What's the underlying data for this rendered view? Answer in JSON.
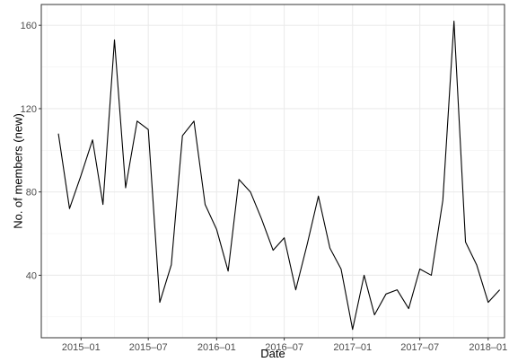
{
  "chart_data": {
    "type": "line",
    "xlabel": "Date",
    "ylabel": "No. of members (new)",
    "xlim": [
      "2014-09-16",
      "2018-02-14"
    ],
    "ylim": [
      10,
      170
    ],
    "grid": true,
    "legend": "none",
    "x_ticks": [
      {
        "date": "2015-01-01",
        "label": "2015–01"
      },
      {
        "date": "2015-07-01",
        "label": "2015–07"
      },
      {
        "date": "2016-01-01",
        "label": "2016–01"
      },
      {
        "date": "2016-07-01",
        "label": "2016–07"
      },
      {
        "date": "2017-01-01",
        "label": "2017–01"
      },
      {
        "date": "2017-07-01",
        "label": "2017–07"
      },
      {
        "date": "2018-01-01",
        "label": "2018–01"
      }
    ],
    "x_minor_ticks": [
      "2014-10-01",
      "2015-04-01",
      "2015-10-01",
      "2016-04-01",
      "2016-10-01",
      "2017-04-01",
      "2017-10-01"
    ],
    "y_ticks": [
      {
        "value": 40,
        "label": "40"
      },
      {
        "value": 80,
        "label": "80"
      },
      {
        "value": 120,
        "label": "120"
      },
      {
        "value": 160,
        "label": "160"
      }
    ],
    "y_minor_ticks": [
      20,
      60,
      100,
      140
    ],
    "series": [
      {
        "color": "#000000",
        "points": [
          {
            "x": "2014-11-01",
            "y": 108
          },
          {
            "x": "2014-12-01",
            "y": 72
          },
          {
            "x": "2015-01-01",
            "y": 88
          },
          {
            "x": "2015-02-01",
            "y": 105
          },
          {
            "x": "2015-03-01",
            "y": 74
          },
          {
            "x": "2015-04-01",
            "y": 153
          },
          {
            "x": "2015-05-01",
            "y": 82
          },
          {
            "x": "2015-06-01",
            "y": 114
          },
          {
            "x": "2015-07-01",
            "y": 110
          },
          {
            "x": "2015-08-01",
            "y": 27
          },
          {
            "x": "2015-09-01",
            "y": 45
          },
          {
            "x": "2015-10-01",
            "y": 107
          },
          {
            "x": "2015-11-01",
            "y": 114
          },
          {
            "x": "2015-12-01",
            "y": 74
          },
          {
            "x": "2016-01-01",
            "y": 62
          },
          {
            "x": "2016-02-01",
            "y": 42
          },
          {
            "x": "2016-03-01",
            "y": 86
          },
          {
            "x": "2016-04-01",
            "y": 80
          },
          {
            "x": "2016-05-01",
            "y": 67
          },
          {
            "x": "2016-06-01",
            "y": 52
          },
          {
            "x": "2016-07-01",
            "y": 58
          },
          {
            "x": "2016-08-01",
            "y": 33
          },
          {
            "x": "2016-09-01",
            "y": 55
          },
          {
            "x": "2016-10-01",
            "y": 78
          },
          {
            "x": "2016-11-01",
            "y": 53
          },
          {
            "x": "2016-12-01",
            "y": 43
          },
          {
            "x": "2017-01-01",
            "y": 14
          },
          {
            "x": "2017-02-01",
            "y": 40
          },
          {
            "x": "2017-03-01",
            "y": 21
          },
          {
            "x": "2017-04-01",
            "y": 31
          },
          {
            "x": "2017-05-01",
            "y": 33
          },
          {
            "x": "2017-06-01",
            "y": 24
          },
          {
            "x": "2017-07-01",
            "y": 43
          },
          {
            "x": "2017-08-01",
            "y": 40
          },
          {
            "x": "2017-09-01",
            "y": 76
          },
          {
            "x": "2017-10-01",
            "y": 162
          },
          {
            "x": "2017-11-01",
            "y": 56
          },
          {
            "x": "2017-12-01",
            "y": 45
          },
          {
            "x": "2018-01-01",
            "y": 27
          },
          {
            "x": "2018-02-01",
            "y": 33
          }
        ]
      }
    ]
  }
}
